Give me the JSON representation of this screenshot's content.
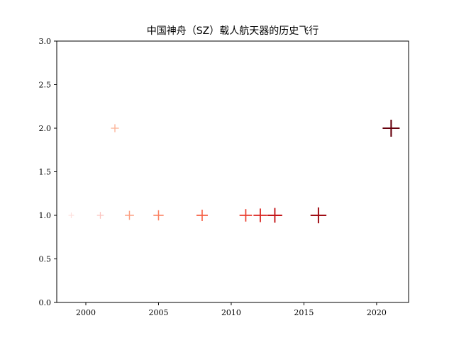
{
  "chart_data": {
    "type": "scatter",
    "title": "中国神舟（SZ）载人航天器的历史飞行",
    "xlabel": "",
    "ylabel": "",
    "xlim": [
      1998,
      2022.2
    ],
    "ylim": [
      0,
      3
    ],
    "xticks": [
      2000,
      2005,
      2010,
      2015,
      2020
    ],
    "yticks": [
      0.0,
      0.5,
      1.0,
      1.5,
      2.0,
      2.5,
      3.0
    ],
    "xtick_labels": [
      "2000",
      "2005",
      "2010",
      "2015",
      "2020"
    ],
    "ytick_labels": [
      "0.0",
      "0.5",
      "1.0",
      "1.5",
      "2.0",
      "2.5",
      "3.0"
    ],
    "marker": "plus",
    "colormap": "Reds",
    "grid": false,
    "points": [
      {
        "x": 1999,
        "y": 1,
        "color": "#fde0dd"
      },
      {
        "x": 2001,
        "y": 1,
        "color": "#fcc5c0"
      },
      {
        "x": 2002,
        "y": 2,
        "color": "#fcb499"
      },
      {
        "x": 2003,
        "y": 1,
        "color": "#fc9f81"
      },
      {
        "x": 2005,
        "y": 1,
        "color": "#fb8060"
      },
      {
        "x": 2008,
        "y": 1,
        "color": "#f65f43"
      },
      {
        "x": 2011,
        "y": 1,
        "color": "#ea3d2e"
      },
      {
        "x": 2012,
        "y": 1,
        "color": "#d9231f"
      },
      {
        "x": 2013,
        "y": 1,
        "color": "#c41619"
      },
      {
        "x": 2016,
        "y": 1,
        "color": "#a00e15"
      },
      {
        "x": 2021,
        "y": 2,
        "color": "#67000d"
      }
    ]
  }
}
